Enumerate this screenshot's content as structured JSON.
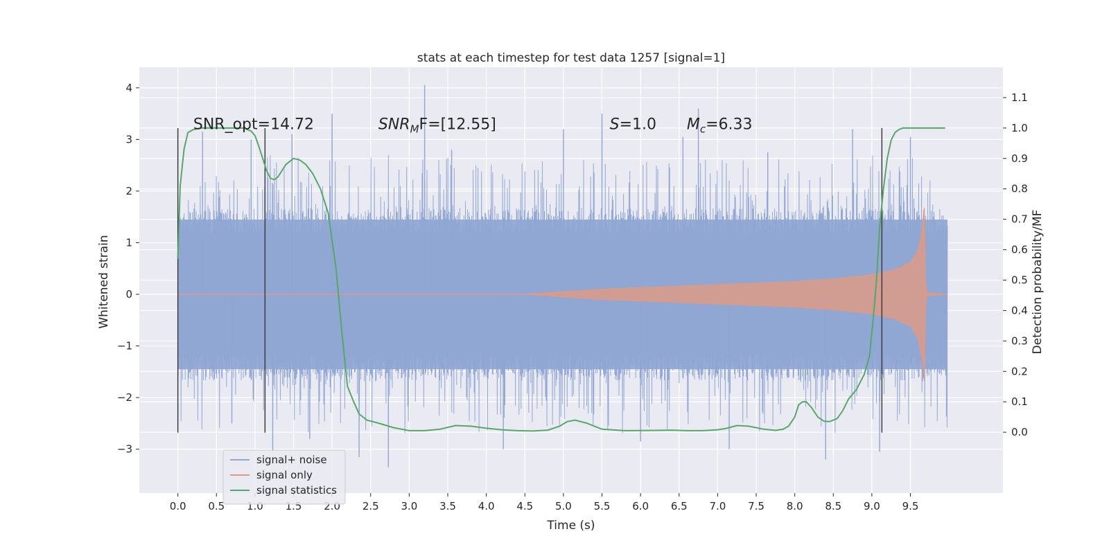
{
  "chart_data": {
    "type": "line",
    "title": "stats at each timestep for test data 1257 [signal=1]",
    "xlabel": "Time (s)",
    "ylabel_left": "Whitened strain",
    "ylabel_right": "Detection probability/MF",
    "xlim": [
      -0.5,
      10.7
    ],
    "ylim_left": [
      -3.85,
      4.4
    ],
    "ylim_right": [
      -0.2,
      1.2
    ],
    "x_ticks": [
      "0.0",
      "0.5",
      "1.0",
      "1.5",
      "2.0",
      "2.5",
      "3.0",
      "3.5",
      "4.0",
      "4.5",
      "5.0",
      "5.5",
      "6.0",
      "6.5",
      "7.0",
      "7.5",
      "8.0",
      "8.5",
      "9.0",
      "9.5"
    ],
    "y_left_ticks": [
      "4",
      "3",
      "2",
      "1",
      "0",
      "−1",
      "−2",
      "−3"
    ],
    "y_right_ticks": [
      "1.1",
      "1.0",
      "0.9",
      "0.8",
      "0.7",
      "0.6",
      "0.5",
      "0.4",
      "0.3",
      "0.2",
      "0.1",
      "0.0"
    ],
    "grid": true,
    "legend_position": "lower-left",
    "colors": {
      "noise": "#8fa5d3",
      "signal": "#dd9a86",
      "stats": "#55a868",
      "vline": "#3d3d3d",
      "axes_bg": "#eaeaf2"
    },
    "annotations": [
      {
        "x": 0.2,
        "y": 3.2,
        "text": "SNR_opt=14.72"
      },
      {
        "x": 2.6,
        "y": 3.2,
        "text": "SNRMF=[12.55]",
        "parts": [
          "SNR",
          "M",
          "F=[12.55]"
        ]
      },
      {
        "x": 5.6,
        "y": 3.2,
        "text": "S=1.0",
        "parts": [
          "S",
          "=1.0"
        ]
      },
      {
        "x": 6.6,
        "y": 3.2,
        "text": "Mc=6.33",
        "parts": [
          "M",
          "c",
          "=6.33"
        ]
      }
    ],
    "vlines": [
      {
        "x": 0.0,
        "y_range": [
          -2.68,
          3.22
        ]
      },
      {
        "x": 1.13,
        "y_range": [
          -2.68,
          3.22
        ]
      },
      {
        "x": 9.13,
        "y_range": [
          -2.68,
          3.22
        ]
      }
    ],
    "series": [
      {
        "name": "signal+ noise",
        "x_range": [
          0.0,
          9.98
        ],
        "band_core": [
          -1.45,
          1.45
        ],
        "spike_peaks": [
          {
            "x": 0.32,
            "y": 3.15
          },
          {
            "x": 0.7,
            "y": -2.5
          },
          {
            "x": 0.95,
            "y": 3.0
          },
          {
            "x": 1.23,
            "y": -3.05
          },
          {
            "x": 1.48,
            "y": 3.1
          },
          {
            "x": 1.71,
            "y": -2.8
          },
          {
            "x": 2.0,
            "y": 3.5
          },
          {
            "x": 2.35,
            "y": -3.15
          },
          {
            "x": 2.73,
            "y": -3.35
          },
          {
            "x": 3.2,
            "y": 4.05
          },
          {
            "x": 3.55,
            "y": 2.8
          },
          {
            "x": 4.22,
            "y": -3.0
          },
          {
            "x": 5.0,
            "y": 3.2
          },
          {
            "x": 5.5,
            "y": 3.5
          },
          {
            "x": 6.0,
            "y": -2.85
          },
          {
            "x": 6.55,
            "y": 3.05
          },
          {
            "x": 6.75,
            "y": 3.6
          },
          {
            "x": 7.15,
            "y": -3.0
          },
          {
            "x": 7.65,
            "y": 2.75
          },
          {
            "x": 8.4,
            "y": -3.2
          },
          {
            "x": 8.75,
            "y": 3.2
          },
          {
            "x": 9.1,
            "y": -3.05
          },
          {
            "x": 9.5,
            "y": 3.05
          }
        ]
      },
      {
        "name": "signal only",
        "envelope": [
          [
            0.0,
            0.0
          ],
          [
            4.5,
            0.0
          ],
          [
            5.0,
            0.05
          ],
          [
            5.5,
            0.1
          ],
          [
            6.0,
            0.13
          ],
          [
            6.5,
            0.16
          ],
          [
            7.0,
            0.19
          ],
          [
            7.5,
            0.22
          ],
          [
            8.0,
            0.25
          ],
          [
            8.5,
            0.3
          ],
          [
            9.0,
            0.38
          ],
          [
            9.3,
            0.48
          ],
          [
            9.5,
            0.62
          ],
          [
            9.6,
            0.85
          ],
          [
            9.65,
            1.25
          ],
          [
            9.68,
            1.68
          ],
          [
            9.7,
            0.2
          ],
          [
            9.72,
            0.03
          ],
          [
            9.98,
            0.0
          ]
        ]
      },
      {
        "name": "signal statistics",
        "x": [
          0.0,
          0.03,
          0.08,
          0.13,
          0.2,
          0.3,
          0.5,
          0.7,
          0.85,
          0.95,
          1.0,
          1.05,
          1.1,
          1.15,
          1.2,
          1.25,
          1.3,
          1.35,
          1.4,
          1.5,
          1.58,
          1.66,
          1.75,
          1.85,
          1.95,
          2.05,
          2.13,
          2.2,
          2.28,
          2.35,
          2.45,
          2.6,
          2.8,
          3.0,
          3.2,
          3.4,
          3.6,
          3.8,
          4.0,
          4.2,
          4.4,
          4.6,
          4.8,
          4.95,
          5.05,
          5.15,
          5.3,
          5.5,
          5.8,
          6.2,
          6.4,
          6.6,
          6.8,
          7.0,
          7.1,
          7.25,
          7.4,
          7.6,
          7.75,
          7.85,
          7.92,
          8.0,
          8.05,
          8.1,
          8.15,
          8.22,
          8.3,
          8.38,
          8.45,
          8.55,
          8.62,
          8.7,
          8.8,
          8.9,
          8.97,
          9.02,
          9.06,
          9.1,
          9.15,
          9.2,
          9.25,
          9.3,
          9.35,
          9.4,
          9.5,
          9.6,
          9.8,
          9.95
        ],
        "y": [
          0.57,
          0.81,
          0.93,
          0.985,
          0.995,
          1.0,
          1.0,
          1.0,
          1.0,
          0.99,
          0.975,
          0.94,
          0.9,
          0.86,
          0.835,
          0.83,
          0.84,
          0.86,
          0.88,
          0.9,
          0.895,
          0.88,
          0.85,
          0.8,
          0.72,
          0.54,
          0.32,
          0.15,
          0.1,
          0.06,
          0.04,
          0.03,
          0.015,
          0.005,
          0.005,
          0.01,
          0.022,
          0.02,
          0.013,
          0.008,
          0.005,
          0.004,
          0.007,
          0.02,
          0.035,
          0.04,
          0.03,
          0.01,
          0.005,
          0.006,
          0.007,
          0.005,
          0.005,
          0.008,
          0.012,
          0.022,
          0.02,
          0.01,
          0.006,
          0.01,
          0.02,
          0.05,
          0.09,
          0.1,
          0.1,
          0.08,
          0.05,
          0.036,
          0.035,
          0.045,
          0.07,
          0.11,
          0.14,
          0.19,
          0.25,
          0.38,
          0.5,
          0.67,
          0.8,
          0.9,
          0.96,
          0.985,
          0.995,
          1.0,
          1.0,
          1.0,
          1.0,
          1.0
        ]
      }
    ]
  }
}
